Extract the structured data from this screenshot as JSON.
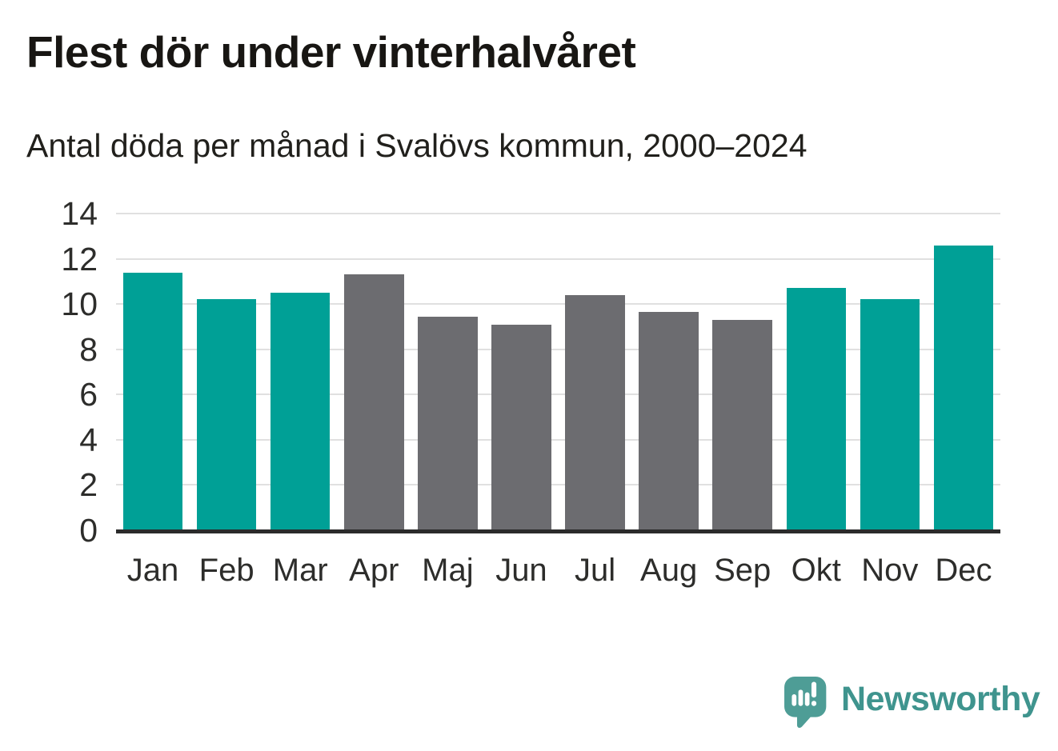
{
  "header": {
    "title": "Flest dör under vinterhalvåret",
    "subtitle": "Antal döda per månad i Svalövs kommun, 2000–2024"
  },
  "chart_data": {
    "type": "bar",
    "title": "Flest dör under vinterhalvåret",
    "subtitle": "Antal döda per månad i Svalövs kommun, 2000–2024",
    "categories": [
      "Jan",
      "Feb",
      "Mar",
      "Apr",
      "Maj",
      "Jun",
      "Jul",
      "Aug",
      "Sep",
      "Okt",
      "Nov",
      "Dec"
    ],
    "values": [
      11.4,
      10.2,
      10.5,
      11.3,
      9.45,
      9.1,
      10.4,
      9.65,
      9.3,
      10.7,
      10.2,
      12.6
    ],
    "bar_colors": [
      "winter",
      "winter",
      "winter",
      "summer",
      "summer",
      "summer",
      "summer",
      "summer",
      "summer",
      "winter",
      "winter",
      "winter"
    ],
    "palette": {
      "winter": "#00a096",
      "summer": "#6c6c70"
    },
    "xlabel": "",
    "ylabel": "",
    "ylim": [
      0,
      14
    ],
    "yticks": [
      0,
      2,
      4,
      6,
      8,
      10,
      12,
      14
    ],
    "grid": true,
    "legend_position": "none"
  },
  "colors": {
    "gridline": "#e0e0e0",
    "axis_line": "#2b2b2b",
    "logo_fill": "#4e9d96",
    "brand_text": "#3f948e"
  },
  "footer": {
    "brand": "Newsworthy"
  }
}
